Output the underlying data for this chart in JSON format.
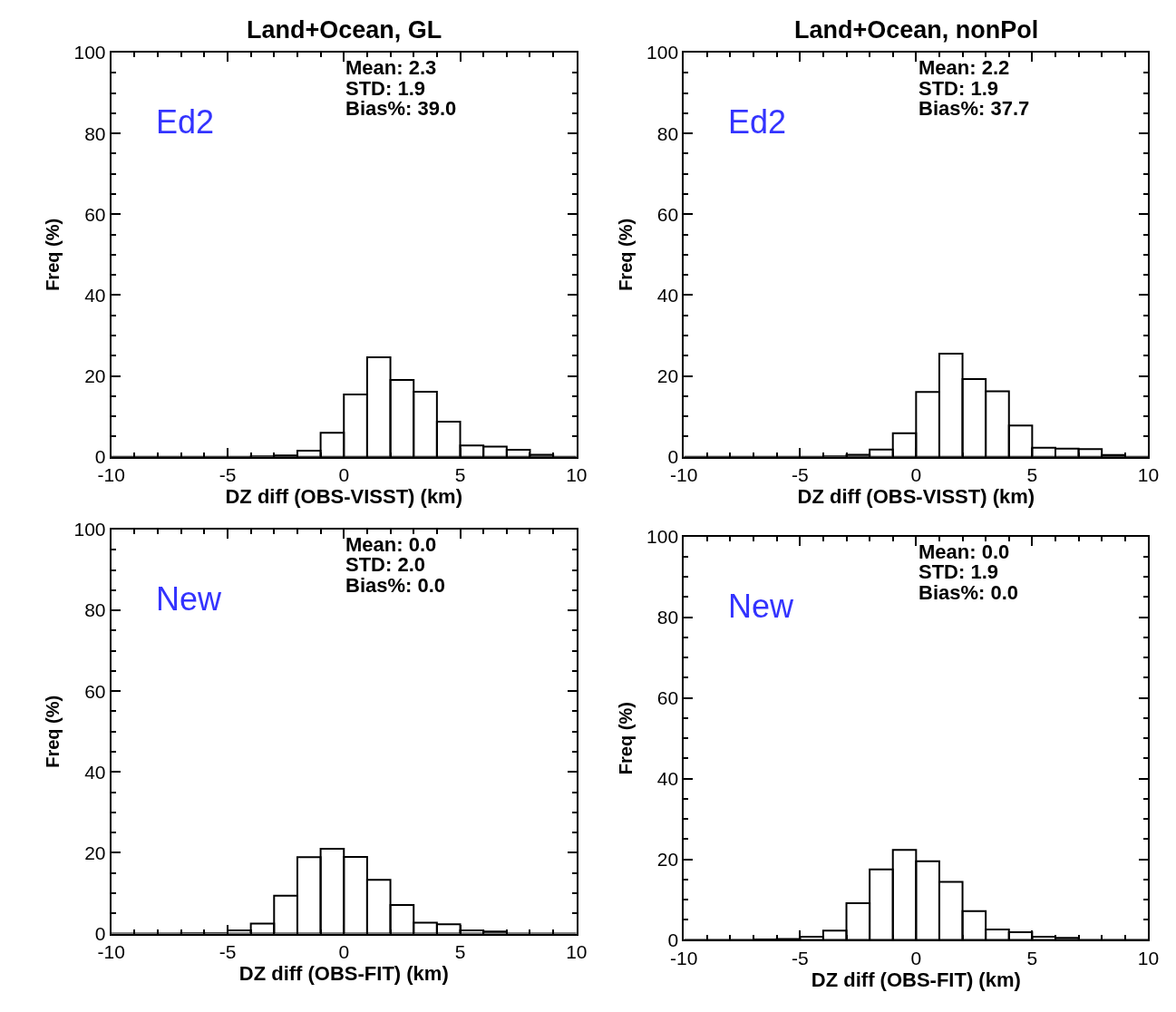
{
  "chart_data": [
    {
      "type": "histogram",
      "title": "Land+Ocean, GL",
      "xlabel": "DZ diff (OBS-VISST) (km)",
      "ylabel": "Freq (%)",
      "color": "#000000",
      "bins": [
        -10,
        -9,
        -8,
        -7,
        -6,
        -5,
        -4,
        -3,
        -2,
        -1,
        0,
        1,
        2,
        3,
        4,
        5,
        6,
        7,
        8,
        9,
        10
      ],
      "values": [
        0,
        0,
        0,
        0,
        0,
        0,
        0.1,
        0.3,
        1.5,
        5.9,
        15.4,
        24.6,
        19.0,
        16.1,
        8.7,
        2.8,
        2.5,
        1.7,
        0.5,
        0
      ],
      "xlim": [
        -10,
        10
      ],
      "xticks": [
        -10,
        -5,
        0,
        5,
        10
      ],
      "ylim": [
        0,
        100
      ],
      "yticks": [
        0,
        20,
        40,
        60,
        80,
        100
      ],
      "annotations": [
        "Mean: 2.3",
        "STD: 1.9",
        "Bias%: 39.0",
        "Ed2"
      ]
    },
    {
      "type": "histogram",
      "title": "Land+Ocean, nonPol",
      "xlabel": "DZ diff (OBS-VISST) (km)",
      "ylabel": "Freq (%)",
      "color": "#000000",
      "bins": [
        -10,
        -9,
        -8,
        -7,
        -6,
        -5,
        -4,
        -3,
        -2,
        -1,
        0,
        1,
        2,
        3,
        4,
        5,
        6,
        7,
        8,
        9,
        10
      ],
      "values": [
        0,
        0,
        0,
        0,
        0,
        0,
        0.1,
        0.5,
        1.8,
        5.8,
        16.0,
        25.5,
        19.2,
        16.2,
        7.7,
        2.2,
        2.0,
        1.9,
        0.4,
        0
      ],
      "xlim": [
        -10,
        10
      ],
      "xticks": [
        -10,
        -5,
        0,
        5,
        10
      ],
      "ylim": [
        0,
        100
      ],
      "yticks": [
        0,
        20,
        40,
        60,
        80,
        100
      ],
      "annotations": [
        "Mean: 2.2",
        "STD: 1.9",
        "Bias%: 37.7",
        "Ed2"
      ]
    },
    {
      "type": "histogram",
      "xlabel": "DZ diff (OBS-FIT) (km)",
      "ylabel": "Freq (%)",
      "color": "#000000",
      "bins": [
        -10,
        -9,
        -8,
        -7,
        -6,
        -5,
        -4,
        -3,
        -2,
        -1,
        0,
        1,
        2,
        3,
        4,
        5,
        6,
        7,
        8,
        9,
        10
      ],
      "values": [
        0,
        0,
        0,
        0.1,
        0.1,
        0.8,
        2.5,
        9.4,
        18.9,
        21.0,
        19.0,
        13.3,
        7.1,
        2.7,
        2.3,
        0.8,
        0.5,
        0,
        0,
        0
      ],
      "xlim": [
        -10,
        10
      ],
      "xticks": [
        -10,
        -5,
        0,
        5,
        10
      ],
      "ylim": [
        0,
        100
      ],
      "yticks": [
        0,
        20,
        40,
        60,
        80,
        100
      ],
      "annotations": [
        "Mean: 0.0",
        "STD: 2.0",
        "Bias%: 0.0",
        "New"
      ]
    },
    {
      "type": "histogram",
      "xlabel": "DZ diff (OBS-FIT) (km)",
      "ylabel": "Freq (%)",
      "color": "#000000",
      "bins": [
        -10,
        -9,
        -8,
        -7,
        -6,
        -5,
        -4,
        -3,
        -2,
        -1,
        0,
        1,
        2,
        3,
        4,
        5,
        6,
        7,
        8,
        9,
        10
      ],
      "values": [
        0,
        0,
        0,
        0.1,
        0.2,
        0.8,
        2.3,
        9.1,
        17.5,
        22.3,
        19.5,
        14.4,
        7.1,
        2.6,
        1.9,
        0.8,
        0.5,
        0,
        0,
        0
      ],
      "xlim": [
        -10,
        10
      ],
      "xticks": [
        -10,
        -5,
        0,
        5,
        10
      ],
      "ylim": [
        0,
        100
      ],
      "yticks": [
        0,
        20,
        40,
        60,
        80,
        100
      ],
      "annotations": [
        "Mean: 0.0",
        "STD: 1.9",
        "Bias%: 0.0",
        "New"
      ]
    }
  ]
}
